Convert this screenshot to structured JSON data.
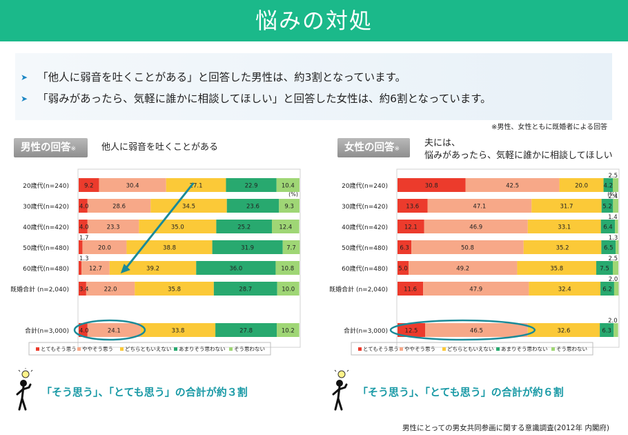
{
  "title": "悩みの対処",
  "summary": {
    "points": [
      "「他人に弱音を吐くことがある」と回答した男性は、約3割となっています。",
      "「弱みがあったら、気軽に誰かに相談してほしい」と回答した女性は、約6割となっています。"
    ],
    "note": "※男性、女性ともに既婚者による回答"
  },
  "panels": [
    {
      "tag": "男性の回答",
      "tag_mark": "※",
      "question_lines": [
        "他人に弱音を吐くことがある"
      ],
      "conclusion": "「そう思う」、「とても思う」の合計が約３割"
    },
    {
      "tag": "女性の回答",
      "tag_mark": "※",
      "question_lines": [
        "夫には、",
        "悩みがあったら、気軽に誰かに相談してほしい"
      ],
      "conclusion": "「そう思う」、「とても思う」の合計が約６割"
    }
  ],
  "legend": [
    "とてもそう思う",
    "ややそう思う",
    "どちらともいえない",
    "あまりそう思わない",
    "そう思わない"
  ],
  "colors": [
    "#ec3b2c",
    "#f7a888",
    "#fbc938",
    "#28a96f",
    "#9fd675"
  ],
  "chart_data": [
    {
      "type": "bar",
      "stacked": true,
      "orientation": "horizontal",
      "unit": "(%)",
      "xlim": [
        0,
        100
      ],
      "categories": [
        "20歳代(n=240)",
        "30歳代(n=420)",
        "40歳代(n=420)",
        "50歳代(n=480)",
        "60歳代(n=480)",
        "既婚合計 (n=2,040)",
        "合計(n=3,000)"
      ],
      "series": [
        {
          "name": "とてもそう思う",
          "values": [
            9.2,
            4.0,
            4.0,
            1.7,
            1.3,
            3.4,
            4.0
          ]
        },
        {
          "name": "ややそう思う",
          "values": [
            30.4,
            28.6,
            23.3,
            20.0,
            12.7,
            22.0,
            24.1
          ]
        },
        {
          "name": "どちらともいえない",
          "values": [
            27.1,
            34.5,
            35.0,
            38.8,
            39.2,
            35.8,
            33.8
          ]
        },
        {
          "name": "あまりそう思わない",
          "values": [
            22.9,
            23.6,
            25.2,
            31.9,
            36.0,
            28.7,
            27.8
          ]
        },
        {
          "name": "そう思わない",
          "values": [
            10.4,
            9.3,
            12.4,
            7.7,
            10.8,
            10.0,
            10.2
          ]
        }
      ],
      "legend_position": "bottom",
      "annotations": [
        "arrow from 20歳代 to 60歳代",
        "ellipse around 合計 とてもそう思う + ややそう思う"
      ]
    },
    {
      "type": "bar",
      "stacked": true,
      "orientation": "horizontal",
      "unit": "(%)",
      "xlim": [
        0,
        100
      ],
      "categories": [
        "20歳代(n=240)",
        "30歳代(n=420)",
        "40歳代(n=420)",
        "50歳代(n=480)",
        "60歳代(n=480)",
        "既婚合計 (n=2,040)",
        "合計(n=3,000)"
      ],
      "series": [
        {
          "name": "とてもそう思う",
          "values": [
            30.8,
            13.6,
            12.1,
            6.3,
            5.0,
            11.6,
            12.5
          ]
        },
        {
          "name": "ややそう思う",
          "values": [
            42.5,
            47.1,
            46.9,
            50.8,
            49.2,
            47.9,
            46.5
          ]
        },
        {
          "name": "どちらともいえない",
          "values": [
            20.0,
            31.7,
            33.1,
            35.2,
            35.8,
            32.4,
            32.6
          ]
        },
        {
          "name": "あまりそう思わない",
          "values": [
            4.2,
            5.2,
            6.4,
            6.5,
            7.5,
            6.2,
            6.3
          ]
        },
        {
          "name": "そう思わない",
          "values": [
            2.5,
            2.4,
            1.4,
            1.3,
            2.5,
            2.0,
            2.0
          ]
        }
      ],
      "legend_position": "bottom",
      "annotations": [
        "ellipse around 合計 とてもそう思う + ややそう思う"
      ]
    }
  ],
  "source": "男性にとっての男女共同参画に関する意識調査(2012年 内閣府)"
}
